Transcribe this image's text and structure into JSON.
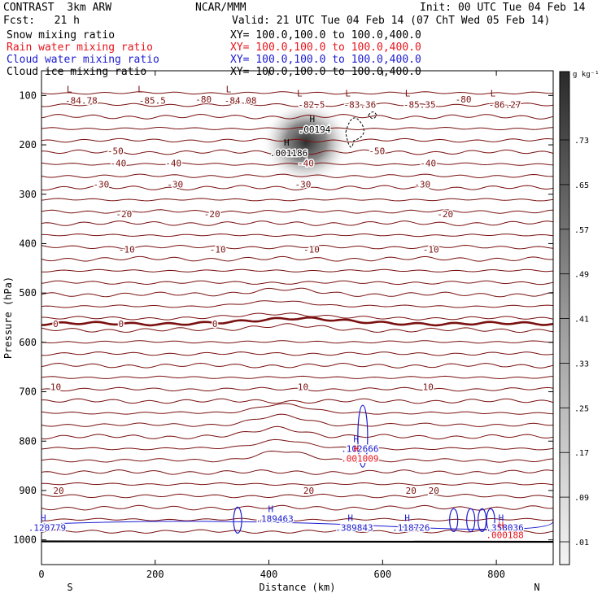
{
  "header": {
    "title_left": "CONTRAST  3km ARW",
    "title_center": "NCAR/MMM",
    "init": "Init: 00 UTC Tue 04 Feb 14",
    "fcst": "Fcst:   21 h",
    "valid": "Valid: 21 UTC Tue 04 Feb 14 (07 ChT Wed 05 Feb 14)",
    "fields": [
      {
        "label": "Snow mixing ratio",
        "xy": "XY= 100.0,100.0 to 100.0,400.0",
        "color": "#000000"
      },
      {
        "label": "Rain water mixing ratio",
        "xy": "XY= 100.0,100.0 to 100.0,400.0",
        "color": "#e8141b"
      },
      {
        "label": "Cloud water mixing ratio",
        "xy": "XY= 100.0,100.0 to 100.0,400.0",
        "color": "#1b1bd0"
      },
      {
        "label": "Cloud ice mixing ratio",
        "xy": "XY= 100.0,100.0 to 100.0,400.0",
        "color": "#000000"
      }
    ]
  },
  "colors": {
    "temperature": "#7a1010",
    "rain": "#e8141b",
    "cloud": "#1b1bd0",
    "text": "#000000"
  },
  "chart_data": {
    "type": "contour",
    "xlabel": "Distance (km)",
    "ylabel": "Pressure (hPa)",
    "xlim": [
      0,
      900
    ],
    "ylim": [
      1050,
      50
    ],
    "x_ticks": [
      0,
      200,
      400,
      600,
      800
    ],
    "y_ticks": [
      100,
      200,
      300,
      400,
      500,
      600,
      700,
      800,
      900,
      1000
    ],
    "x_end_labels": {
      "left": "S",
      "right": "N"
    },
    "colorbar": {
      "unit": "g kg⁻¹",
      "labels": [
        ".01",
        ".09",
        ".17",
        ".25",
        ".33",
        ".41",
        ".49",
        ".57",
        ".65",
        ".73"
      ]
    },
    "isotherms": [
      {
        "temp": "-80",
        "p": 108,
        "labels": [
          {
            "x": 285,
            "text": "-80"
          },
          {
            "x": 740,
            "text": "-80"
          },
          {
            "x": 742,
            "text": "-80"
          }
        ]
      },
      {
        "temp": "-60",
        "p": 170,
        "labels": []
      },
      {
        "temp": "-50",
        "p": 212,
        "labels": [
          {
            "x": 130,
            "text": "-50"
          },
          {
            "x": 590,
            "text": "-50"
          }
        ]
      },
      {
        "temp": "-40",
        "p": 237,
        "labels": [
          {
            "x": 135,
            "text": "-40"
          },
          {
            "x": 232,
            "text": "-40"
          },
          {
            "x": 465,
            "text": "-40"
          },
          {
            "x": 680,
            "text": "-40"
          }
        ]
      },
      {
        "temp": "-30",
        "p": 280,
        "labels": [
          {
            "x": 105,
            "text": "-30"
          },
          {
            "x": 235,
            "text": "-30"
          },
          {
            "x": 460,
            "text": "-30"
          },
          {
            "x": 670,
            "text": "-30"
          }
        ]
      },
      {
        "temp": "-20",
        "p": 340,
        "labels": [
          {
            "x": 145,
            "text": "-20"
          },
          {
            "x": 300,
            "text": "-20"
          },
          {
            "x": 710,
            "text": "-20"
          }
        ]
      },
      {
        "temp": "-10",
        "p": 412,
        "labels": [
          {
            "x": 150,
            "text": "-10"
          },
          {
            "x": 310,
            "text": "-10"
          },
          {
            "x": 475,
            "text": "-10"
          },
          {
            "x": 685,
            "text": "-10"
          }
        ]
      },
      {
        "temp": "0",
        "p": 562,
        "labels": [
          {
            "x": 25,
            "text": "0"
          },
          {
            "x": 140,
            "text": "0"
          },
          {
            "x": 305,
            "text": "0"
          }
        ]
      },
      {
        "temp": "10",
        "p": 690,
        "labels": [
          {
            "x": 25,
            "text": "10"
          },
          {
            "x": 460,
            "text": "10"
          },
          {
            "x": 680,
            "text": "10"
          }
        ]
      },
      {
        "temp": "20",
        "p": 900,
        "labels": [
          {
            "x": 30,
            "text": "20"
          },
          {
            "x": 470,
            "text": "20"
          },
          {
            "x": 650,
            "text": "20"
          },
          {
            "x": 690,
            "text": "20"
          }
        ]
      }
    ],
    "lows": [
      {
        "x": 70,
        "p": 110,
        "text": "-84.78"
      },
      {
        "x": 195,
        "p": 110,
        "text": "-85.5"
      },
      {
        "x": 350,
        "p": 110,
        "text": "-84.08"
      },
      {
        "x": 475,
        "p": 118,
        "text": "-82.5"
      },
      {
        "x": 560,
        "p": 118,
        "text": "-83.36"
      },
      {
        "x": 665,
        "p": 118,
        "text": "-85.35"
      },
      {
        "x": 815,
        "p": 118,
        "text": "-86.27"
      }
    ],
    "snow_maxima": [
      {
        "x": 480,
        "p": 170,
        "text": ".00194",
        "color": "#000000"
      },
      {
        "x": 435,
        "p": 218,
        "text": ".001186",
        "color": "#000000"
      }
    ],
    "cloud_maxima": [
      {
        "x": 10,
        "p": 975,
        "text": ".120779"
      },
      {
        "x": 410,
        "p": 957,
        "text": ".189463"
      },
      {
        "x": 550,
        "p": 975,
        "text": ".389843"
      },
      {
        "x": 650,
        "p": 975,
        "text": ".118726"
      },
      {
        "x": 815,
        "p": 975,
        "text": ".358036"
      },
      {
        "x": 560,
        "p": 815,
        "text": ".102666"
      }
    ],
    "rain_maxima": [
      {
        "x": 560,
        "p": 835,
        "text": ".001009"
      },
      {
        "x": 815,
        "p": 990,
        "text": ".000188"
      }
    ]
  }
}
